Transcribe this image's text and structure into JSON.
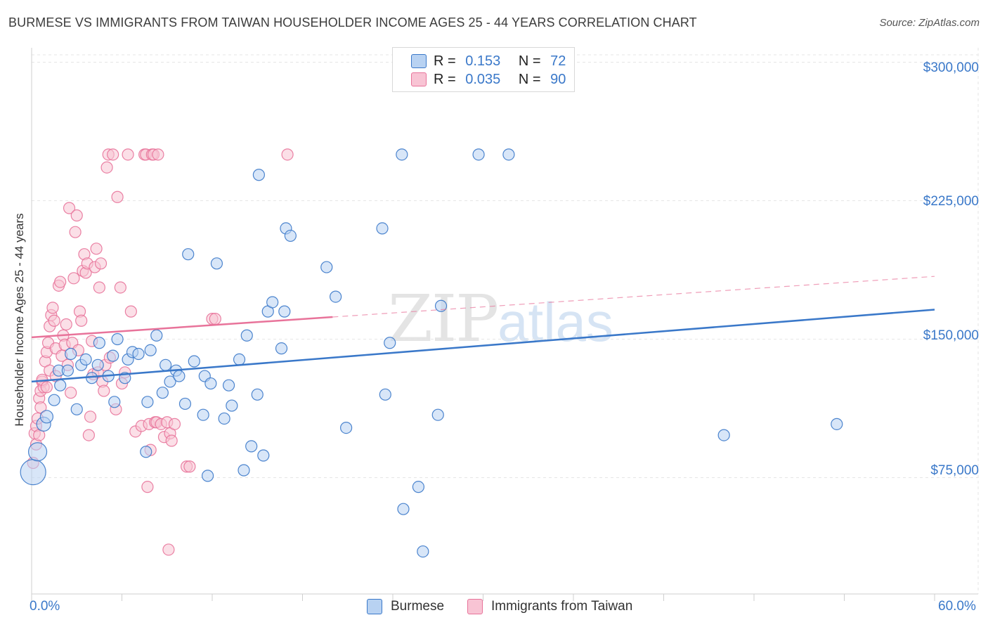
{
  "title": "BURMESE VS IMMIGRANTS FROM TAIWAN HOUSEHOLDER INCOME AGES 25 - 44 YEARS CORRELATION CHART",
  "source": "Source: ZipAtlas.com",
  "watermark": {
    "zip": "ZIP",
    "atlas": "atlas"
  },
  "colors": {
    "blue": "#3a78c9",
    "blue_fill": "#b8d2f2",
    "pink": "#e8739a",
    "pink_fill": "#f8c4d4"
  },
  "legend": {
    "r_label": "R =",
    "n_label": "N =",
    "rows": [
      {
        "name": "Burmese",
        "r": "0.153",
        "n": "72"
      },
      {
        "name": "Immigrants from Taiwan",
        "r": "0.035",
        "n": "90"
      }
    ]
  },
  "chart_data": {
    "type": "scatter",
    "title": "BURMESE VS IMMIGRANTS FROM TAIWAN HOUSEHOLDER INCOME AGES 25 - 44 YEARS CORRELATION CHART",
    "xlabel": "",
    "ylabel": "Householder Income Ages 25 - 44 years",
    "xlim": [
      0,
      60
    ],
    "ylim": [
      12000,
      304000
    ],
    "x_tick_labels": [
      "0.0%",
      "60.0%"
    ],
    "y_ticks": [
      75000,
      150000,
      225000,
      300000
    ],
    "y_tick_labels": [
      "$75,000",
      "$150,000",
      "$225,000",
      "$300,000"
    ],
    "grid": true,
    "legend_position": "top-center",
    "series": [
      {
        "name": "Burmese",
        "color": "#3a78c9",
        "trend": {
          "x0": 0,
          "y0": 127000,
          "x1": 60,
          "y1": 166000
        },
        "points": [
          [
            0.1,
            78000,
            18
          ],
          [
            0.4,
            89000,
            13
          ],
          [
            0.8,
            104000,
            10
          ],
          [
            1.0,
            108000,
            9
          ],
          [
            1.5,
            117000,
            8
          ],
          [
            1.9,
            125000,
            8
          ],
          [
            1.8,
            133000,
            8
          ],
          [
            2.4,
            133000,
            8
          ],
          [
            2.6,
            142000,
            8
          ],
          [
            3.0,
            112000,
            8
          ],
          [
            3.3,
            136000,
            8
          ],
          [
            3.6,
            139000,
            8
          ],
          [
            4.0,
            129000,
            8
          ],
          [
            4.4,
            136000,
            8
          ],
          [
            4.5,
            148000,
            8
          ],
          [
            5.1,
            130000,
            8
          ],
          [
            5.4,
            141000,
            8
          ],
          [
            5.5,
            116000,
            8
          ],
          [
            5.7,
            150000,
            8
          ],
          [
            6.2,
            129000,
            8
          ],
          [
            6.4,
            139000,
            8
          ],
          [
            6.7,
            143000,
            8
          ],
          [
            7.1,
            142000,
            8
          ],
          [
            7.6,
            89000,
            8
          ],
          [
            7.7,
            116000,
            8
          ],
          [
            7.9,
            144000,
            8
          ],
          [
            8.3,
            152000,
            8
          ],
          [
            8.7,
            121000,
            8
          ],
          [
            8.9,
            136000,
            8
          ],
          [
            9.2,
            127000,
            8
          ],
          [
            9.6,
            133000,
            8
          ],
          [
            9.8,
            130000,
            8
          ],
          [
            10.2,
            115000,
            8
          ],
          [
            10.4,
            196000,
            8
          ],
          [
            10.8,
            138000,
            8
          ],
          [
            11.4,
            109000,
            8
          ],
          [
            11.5,
            130000,
            8
          ],
          [
            11.7,
            76000,
            8
          ],
          [
            11.9,
            126000,
            8
          ],
          [
            12.3,
            191000,
            8
          ],
          [
            12.8,
            107000,
            8
          ],
          [
            13.1,
            125000,
            8
          ],
          [
            13.3,
            114000,
            8
          ],
          [
            13.8,
            139000,
            8
          ],
          [
            14.1,
            79000,
            8
          ],
          [
            14.3,
            152000,
            8
          ],
          [
            14.6,
            92000,
            8
          ],
          [
            15.0,
            120000,
            8
          ],
          [
            15.1,
            239000,
            8
          ],
          [
            15.4,
            87000,
            8
          ],
          [
            15.7,
            165000,
            8
          ],
          [
            16.0,
            170000,
            8
          ],
          [
            16.6,
            145000,
            8
          ],
          [
            16.8,
            165000,
            8
          ],
          [
            16.9,
            210000,
            8
          ],
          [
            17.2,
            206000,
            8
          ],
          [
            19.6,
            189000,
            8
          ],
          [
            20.2,
            173000,
            8
          ],
          [
            20.9,
            102000,
            8
          ],
          [
            23.3,
            210000,
            8
          ],
          [
            23.5,
            120000,
            8
          ],
          [
            23.8,
            148000,
            8
          ],
          [
            24.6,
            250000,
            8
          ],
          [
            24.7,
            58000,
            8
          ],
          [
            25.7,
            70000,
            8
          ],
          [
            26.0,
            35000,
            8
          ],
          [
            27.0,
            109000,
            8
          ],
          [
            27.2,
            168000,
            8
          ],
          [
            29.7,
            250000,
            8
          ],
          [
            31.7,
            250000,
            8
          ],
          [
            46.0,
            98000,
            8
          ],
          [
            53.5,
            104000,
            8
          ]
        ]
      },
      {
        "name": "Immigrants from Taiwan",
        "color": "#e8739a",
        "trend": {
          "x0": 0,
          "y0": 151000,
          "x1": 20,
          "y1": 162000
        },
        "trend_dashed": {
          "x0": 20,
          "y0": 162000,
          "x1": 60,
          "y1": 184000
        },
        "points": [
          [
            0.1,
            83000,
            8
          ],
          [
            0.2,
            99000,
            8
          ],
          [
            0.3,
            103000,
            8
          ],
          [
            0.4,
            107000,
            8
          ],
          [
            0.5,
            118000,
            8
          ],
          [
            0.6,
            122000,
            8
          ],
          [
            0.7,
            127000,
            8
          ],
          [
            0.8,
            124000,
            8
          ],
          [
            0.9,
            138000,
            8
          ],
          [
            1.0,
            143000,
            8
          ],
          [
            1.1,
            148000,
            8
          ],
          [
            1.2,
            157000,
            8
          ],
          [
            1.3,
            163000,
            8
          ],
          [
            1.4,
            167000,
            8
          ],
          [
            1.5,
            160000,
            8
          ],
          [
            1.6,
            145000,
            8
          ],
          [
            1.8,
            179000,
            8
          ],
          [
            1.9,
            181000,
            8
          ],
          [
            2.0,
            141000,
            8
          ],
          [
            2.1,
            152000,
            8
          ],
          [
            2.2,
            147000,
            8
          ],
          [
            2.4,
            136000,
            8
          ],
          [
            2.5,
            221000,
            8
          ],
          [
            2.6,
            121000,
            8
          ],
          [
            2.7,
            148000,
            8
          ],
          [
            2.8,
            183000,
            8
          ],
          [
            2.9,
            208000,
            8
          ],
          [
            3.0,
            217000,
            8
          ],
          [
            3.1,
            144000,
            8
          ],
          [
            3.2,
            165000,
            8
          ],
          [
            3.3,
            160000,
            8
          ],
          [
            3.4,
            187000,
            8
          ],
          [
            3.5,
            196000,
            8
          ],
          [
            3.6,
            186000,
            8
          ],
          [
            3.7,
            191000,
            8
          ],
          [
            3.8,
            98000,
            8
          ],
          [
            3.9,
            108000,
            8
          ],
          [
            4.0,
            149000,
            8
          ],
          [
            4.1,
            131000,
            8
          ],
          [
            4.2,
            189000,
            8
          ],
          [
            4.3,
            199000,
            8
          ],
          [
            4.4,
            132000,
            8
          ],
          [
            4.5,
            178000,
            8
          ],
          [
            4.6,
            191000,
            8
          ],
          [
            4.7,
            127000,
            8
          ],
          [
            4.8,
            122000,
            8
          ],
          [
            4.9,
            136000,
            8
          ],
          [
            5.0,
            243000,
            8
          ],
          [
            5.1,
            250000,
            8
          ],
          [
            5.2,
            140000,
            8
          ],
          [
            5.4,
            250000,
            8
          ],
          [
            5.6,
            112000,
            8
          ],
          [
            5.7,
            227000,
            8
          ],
          [
            5.9,
            178000,
            8
          ],
          [
            6.0,
            126000,
            8
          ],
          [
            6.2,
            132000,
            8
          ],
          [
            6.4,
            250000,
            8
          ],
          [
            6.6,
            165000,
            8
          ],
          [
            6.9,
            100000,
            8
          ],
          [
            7.3,
            103000,
            8
          ],
          [
            7.5,
            250000,
            8
          ],
          [
            7.6,
            250000,
            8
          ],
          [
            7.7,
            70000,
            8
          ],
          [
            7.8,
            104000,
            8
          ],
          [
            7.9,
            90000,
            8
          ],
          [
            8.0,
            250000,
            8
          ],
          [
            8.1,
            250000,
            8
          ],
          [
            8.2,
            105000,
            8
          ],
          [
            8.3,
            105000,
            8
          ],
          [
            8.4,
            250000,
            8
          ],
          [
            8.6,
            104000,
            8
          ],
          [
            8.8,
            97000,
            8
          ],
          [
            9.0,
            105000,
            8
          ],
          [
            9.1,
            36000,
            8
          ],
          [
            9.2,
            99000,
            8
          ],
          [
            9.3,
            95000,
            8
          ],
          [
            9.5,
            104000,
            8
          ],
          [
            10.3,
            81000,
            8
          ],
          [
            10.5,
            81000,
            8
          ],
          [
            12.0,
            161000,
            8
          ],
          [
            12.2,
            161000,
            8
          ],
          [
            17.0,
            250000,
            8
          ],
          [
            0.3,
            93000,
            8
          ],
          [
            0.5,
            98000,
            8
          ],
          [
            0.6,
            113000,
            8
          ],
          [
            0.7,
            128000,
            8
          ],
          [
            1.0,
            124000,
            8
          ],
          [
            1.2,
            133000,
            8
          ],
          [
            2.3,
            158000,
            8
          ],
          [
            1.6,
            130000,
            8
          ]
        ]
      }
    ]
  }
}
